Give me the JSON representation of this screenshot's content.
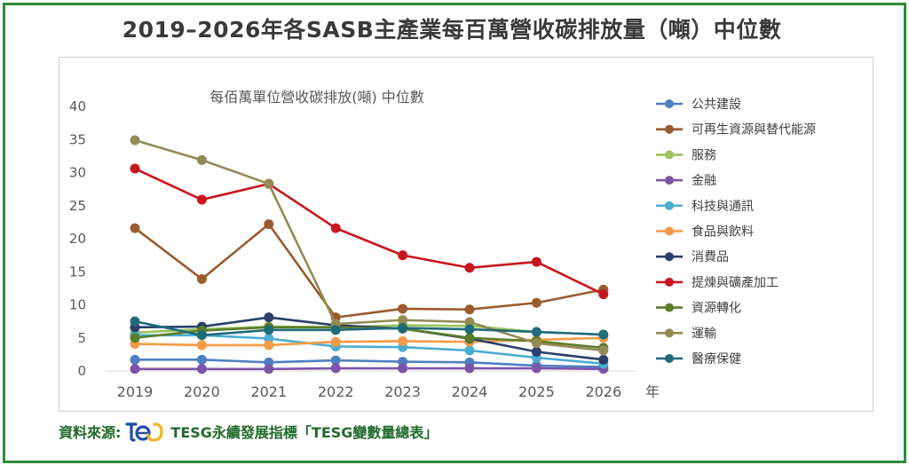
{
  "page_title": "2019–2026年各SASB主產業每百萬營收碳排放量（噸）中位數",
  "source": {
    "label": "資料來源:",
    "name": "TESG永續發展指標「TESG變數量總表」",
    "logo_text": "tesg"
  },
  "chart_data": {
    "type": "line",
    "title": "每佰萬單位營收碳排放(噸) 中位數",
    "xlabel": "年",
    "ylabel": "",
    "ylim": [
      0,
      40
    ],
    "yticks": [
      0,
      5,
      10,
      15,
      20,
      25,
      30,
      35,
      40
    ],
    "x": [
      "2019",
      "2020",
      "2021",
      "2022",
      "2023",
      "2024",
      "2025",
      "2026"
    ],
    "grid": false,
    "legend_position": "right",
    "series": [
      {
        "name": "公共建設",
        "color": "#4e7fc3",
        "values": [
          1.7,
          1.7,
          1.3,
          1.6,
          1.4,
          1.3,
          0.8,
          0.6
        ]
      },
      {
        "name": "可再生資源與替代能源",
        "color": "#9c5b2e",
        "values": [
          21.6,
          13.9,
          22.2,
          8.1,
          9.4,
          9.3,
          10.3,
          12.3
        ]
      },
      {
        "name": "服務",
        "color": "#9bc45a",
        "values": [
          5.8,
          6.3,
          6.7,
          6.6,
          6.9,
          6.8,
          5.9,
          5.5
        ]
      },
      {
        "name": "金融",
        "color": "#7b55a8",
        "values": [
          0.3,
          0.3,
          0.3,
          0.4,
          0.4,
          0.4,
          0.4,
          0.3
        ]
      },
      {
        "name": "科技與通訊",
        "color": "#4aaed1",
        "values": [
          5.4,
          5.4,
          4.9,
          3.7,
          3.6,
          3.1,
          2.0,
          1.1
        ]
      },
      {
        "name": "食品與飲料",
        "color": "#f59a45",
        "values": [
          4.1,
          3.9,
          3.9,
          4.4,
          4.5,
          4.4,
          4.7,
          5.0
        ]
      },
      {
        "name": "消費品",
        "color": "#2a3f6a",
        "values": [
          6.6,
          6.7,
          8.1,
          6.9,
          6.4,
          4.9,
          2.9,
          1.7
        ]
      },
      {
        "name": "提煉與礦產加工",
        "color": "#c8161d",
        "values": [
          30.6,
          25.9,
          28.3,
          21.6,
          17.5,
          15.6,
          16.5,
          11.6
        ]
      },
      {
        "name": "資源轉化",
        "color": "#5a7d2a",
        "values": [
          5.0,
          6.1,
          6.6,
          6.6,
          6.4,
          5.0,
          4.5,
          3.5
        ]
      },
      {
        "name": "運輸",
        "color": "#948a54",
        "values": [
          34.9,
          31.9,
          28.3,
          7.1,
          7.7,
          7.4,
          4.2,
          3.1
        ]
      },
      {
        "name": "醫療保健",
        "color": "#1f6b7a",
        "values": [
          7.5,
          5.4,
          6.2,
          6.2,
          6.5,
          6.3,
          5.9,
          5.5
        ]
      }
    ]
  }
}
